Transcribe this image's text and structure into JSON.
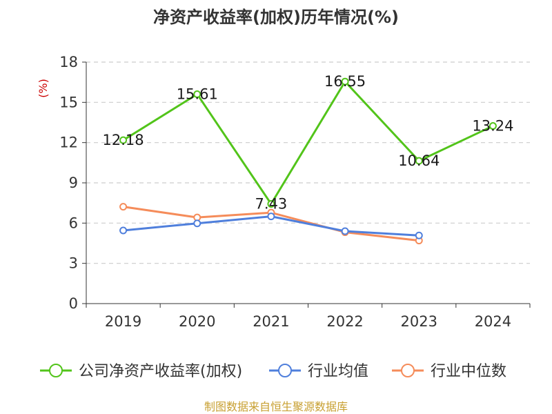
{
  "chart_data": {
    "type": "line",
    "title": "净资产收益率(加权)历年情况(%)",
    "ylabel": "(%)",
    "xlabel": "",
    "categories": [
      "2019",
      "2020",
      "2021",
      "2022",
      "2023",
      "2024"
    ],
    "ylim": [
      0,
      18
    ],
    "yticks": [
      0,
      3,
      6,
      9,
      12,
      15,
      18
    ],
    "grid": true,
    "legend_position": "bottom",
    "series": [
      {
        "name": "公司净资产收益率(加权)",
        "color": "#52c41a",
        "values": [
          12.18,
          15.61,
          7.43,
          16.55,
          10.64,
          13.24
        ],
        "labels": [
          "12.18",
          "15.61",
          "7.43",
          "16.55",
          "10.64",
          "13.24"
        ]
      },
      {
        "name": "行业均值",
        "color": "#4f7fdc",
        "values": [
          5.45,
          5.98,
          6.5,
          5.4,
          5.08,
          null
        ]
      },
      {
        "name": "行业中位数",
        "color": "#f58c5a",
        "values": [
          7.22,
          6.42,
          6.78,
          5.32,
          4.7,
          null
        ]
      }
    ],
    "source": "制图数据来自恒生聚源数据库"
  }
}
